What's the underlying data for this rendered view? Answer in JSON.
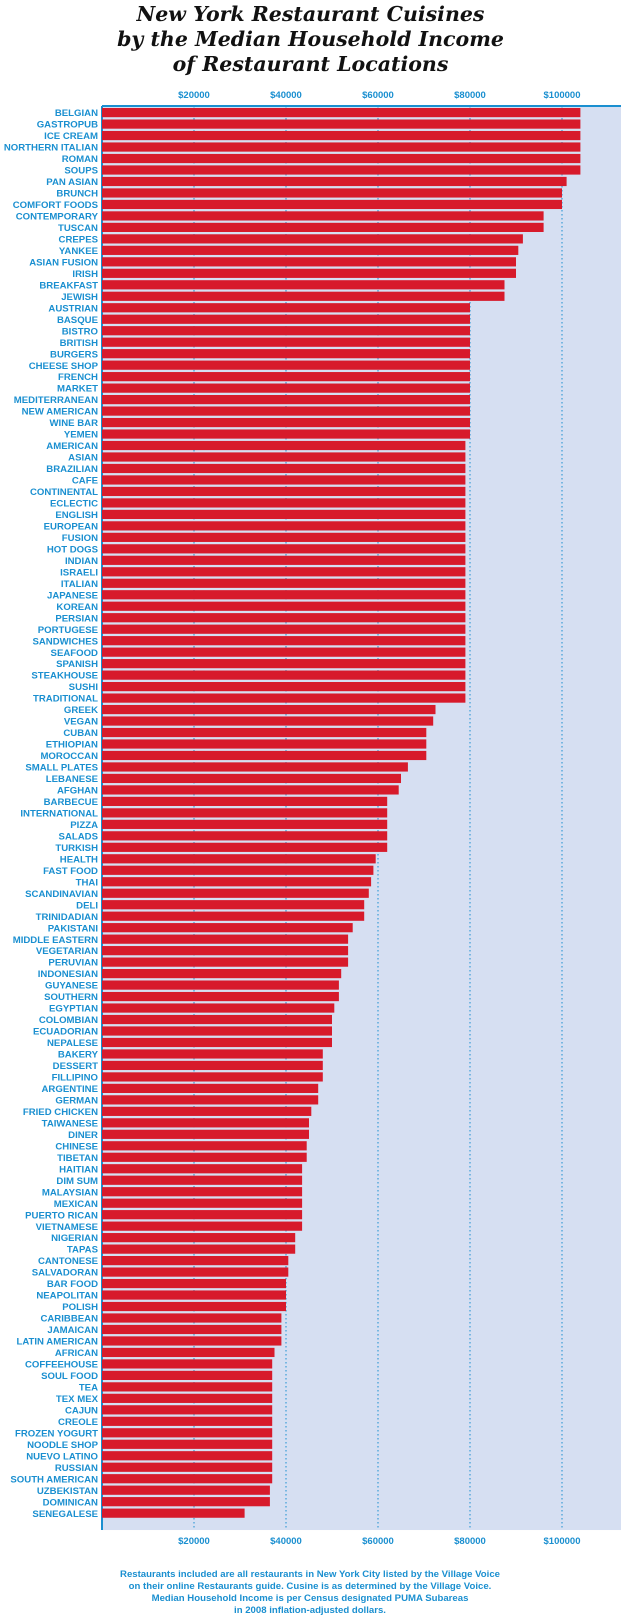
{
  "title_lines": [
    "New York Restaurant Cuisines",
    "by the Median Household Income",
    "of Restaurant Locations"
  ],
  "note_lines": [
    "Restaurants included are all restaurants in New York City listed by the Village Voice",
    "on their online Restaurants guide. Cusine is as determined by the Village Voice.",
    "Median Household Income is per Census designated PUMA Subareas",
    "in 2008 inflation-adjusted dollars."
  ],
  "colors": {
    "bar": "#d71a2b",
    "plot_bg": "#d6dff2",
    "axis": "#1a8fd0",
    "label": "#1a8fd0",
    "title": "#111111"
  },
  "chart_data": {
    "type": "bar",
    "orientation": "horizontal",
    "title": "New York Restaurant Cuisines by the Median Household Income of Restaurant Locations",
    "xlim": [
      0,
      113000
    ],
    "xticks": [
      20000,
      40000,
      60000,
      80000,
      100000
    ],
    "xtick_labels": [
      "$20000",
      "$40000",
      "$60000",
      "$80000",
      "$100000"
    ],
    "xtick_positions": [
      "top",
      "bottom"
    ],
    "grid": "vertical dotted",
    "categories": [
      "BELGIAN",
      "GASTROPUB",
      "ICE CREAM",
      "NORTHERN ITALIAN",
      "ROMAN",
      "SOUPS",
      "PAN ASIAN",
      "BRUNCH",
      "COMFORT FOODS",
      "CONTEMPORARY",
      "TUSCAN",
      "CREPES",
      "YANKEE",
      "ASIAN FUSION",
      "IRISH",
      "BREAKFAST",
      "JEWISH",
      "AUSTRIAN",
      "BASQUE",
      "BISTRO",
      "BRITISH",
      "BURGERS",
      "CHEESE SHOP",
      "FRENCH",
      "MARKET",
      "MEDITERRANEAN",
      "NEW AMERICAN",
      "WINE BAR",
      "YEMEN",
      "AMERICAN",
      "ASIAN",
      "BRAZILIAN",
      "CAFE",
      "CONTINENTAL",
      "ECLECTIC",
      "ENGLISH",
      "EUROPEAN",
      "FUSION",
      "HOT DOGS",
      "INDIAN",
      "ISRAELI",
      "ITALIAN",
      "JAPANESE",
      "KOREAN",
      "PERSIAN",
      "PORTUGESE",
      "SANDWICHES",
      "SEAFOOD",
      "SPANISH",
      "STEAKHOUSE",
      "SUSHI",
      "TRADITIONAL",
      "GREEK",
      "VEGAN",
      "CUBAN",
      "ETHIOPIAN",
      "MOROCCAN",
      "SMALL PLATES",
      "LEBANESE",
      "AFGHAN",
      "BARBECUE",
      "INTERNATIONAL",
      "PIZZA",
      "SALADS",
      "TURKISH",
      "HEALTH",
      "FAST FOOD",
      "THAI",
      "SCANDINAVIAN",
      "DELI",
      "TRINIDADIAN",
      "PAKISTANI",
      "MIDDLE EASTERN",
      "VEGETARIAN",
      "PERUVIAN",
      "INDONESIAN",
      "GUYANESE",
      "SOUTHERN",
      "EGYPTIAN",
      "COLOMBIAN",
      "ECUADORIAN",
      "NEPALESE",
      "BAKERY",
      "DESSERT",
      "FILLIPINO",
      "ARGENTINE",
      "GERMAN",
      "FRIED CHICKEN",
      "TAIWANESE",
      "DINER",
      "CHINESE",
      "TIBETAN",
      "HAITIAN",
      "DIM SUM",
      "MALAYSIAN",
      "MEXICAN",
      "PUERTO RICAN",
      "VIETNAMESE",
      "NIGERIAN",
      "TAPAS",
      "CANTONESE",
      "SALVADORAN",
      "BAR FOOD",
      "NEAPOLITAN",
      "POLISH",
      "CARIBBEAN",
      "JAMAICAN",
      "LATIN AMERICAN",
      "AFRICAN",
      "COFFEEHOUSE",
      "SOUL FOOD",
      "TEA",
      "TEX MEX",
      "CAJUN",
      "CREOLE",
      "FROZEN YOGURT",
      "NOODLE SHOP",
      "NUEVO LATINO",
      "RUSSIAN",
      "SOUTH AMERICAN",
      "UZBEKISTAN",
      "DOMINICAN",
      "SENEGALESE"
    ],
    "values": [
      104000,
      104000,
      104000,
      104000,
      104000,
      104000,
      101000,
      100000,
      100000,
      96000,
      96000,
      91500,
      90500,
      90000,
      90000,
      87500,
      87500,
      80000,
      80000,
      80000,
      80000,
      80000,
      80000,
      80000,
      80000,
      80000,
      80000,
      80000,
      80000,
      79000,
      79000,
      79000,
      79000,
      79000,
      79000,
      79000,
      79000,
      79000,
      79000,
      79000,
      79000,
      79000,
      79000,
      79000,
      79000,
      79000,
      79000,
      79000,
      79000,
      79000,
      79000,
      79000,
      72500,
      72000,
      70500,
      70500,
      70500,
      66500,
      65000,
      64500,
      62000,
      62000,
      62000,
      62000,
      62000,
      59500,
      59000,
      58500,
      58000,
      57000,
      57000,
      54500,
      53500,
      53500,
      53500,
      52000,
      51500,
      51500,
      50500,
      50000,
      50000,
      50000,
      48000,
      48000,
      48000,
      47000,
      47000,
      45500,
      45000,
      45000,
      44500,
      44500,
      43500,
      43500,
      43500,
      43500,
      43500,
      43500,
      42000,
      42000,
      40500,
      40500,
      40000,
      40000,
      40000,
      39000,
      39000,
      39000,
      37500,
      37000,
      37000,
      37000,
      37000,
      37000,
      37000,
      37000,
      37000,
      37000,
      37000,
      37000,
      36500,
      36500,
      31000
    ]
  }
}
